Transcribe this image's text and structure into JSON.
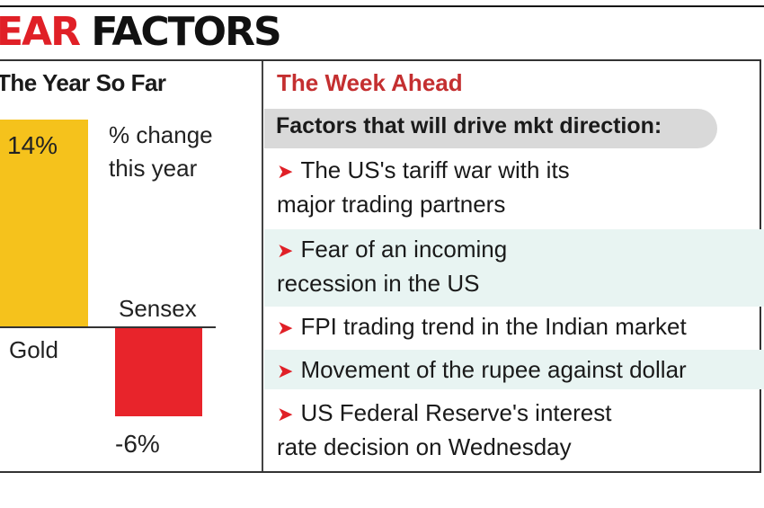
{
  "headline": {
    "accent": "EAR",
    "rest": " FACTORS"
  },
  "left_panel": {
    "title": "The Year So Far",
    "note_line1": "% change",
    "note_line2": "this year"
  },
  "chart_data": {
    "type": "bar",
    "title": "The Year So Far",
    "categories": [
      "Gold",
      "Sensex"
    ],
    "values": [
      14,
      -6
    ],
    "value_labels": [
      "14%",
      "-6%"
    ],
    "ylabel": "% change this year",
    "colors": [
      "#f5c21c",
      "#e8242b"
    ],
    "ylim": [
      -7,
      14
    ],
    "grid": false
  },
  "right_panel": {
    "title": "The Week Ahead",
    "header": "Factors that will drive mkt direction:",
    "factors": [
      {
        "line1": "The US's tariff war with its",
        "line2": "major trading partners"
      },
      {
        "line1": "Fear of an incoming",
        "line2": "recession in the US"
      },
      {
        "line1": "FPI trading trend in the Indian market",
        "line2": ""
      },
      {
        "line1": "Movement of the rupee against dollar",
        "line2": ""
      },
      {
        "line1": "US Federal Reserve's interest",
        "line2": "rate decision on Wednesday"
      }
    ],
    "arrow_glyph": "➤",
    "accent_color": "#e02027",
    "title_color": "#c42f30"
  }
}
